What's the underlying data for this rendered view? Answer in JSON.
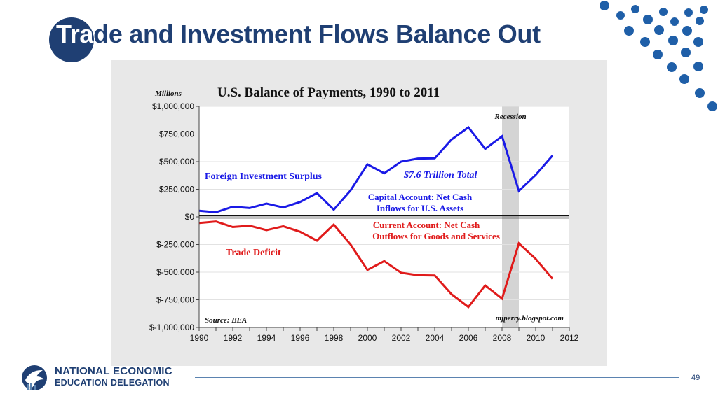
{
  "slide": {
    "title_prefix": "Tra",
    "title_rest": "de and Investment Flows Balance Out",
    "page_number": "49"
  },
  "logo": {
    "line1": "NATIONAL ECONOMIC",
    "line2": "EDUCATION DELEGATION"
  },
  "colors": {
    "navy": "#1f3f73",
    "dot_blue": "#1f5fa8",
    "surplus": "#1a1ae6",
    "deficit": "#e01b1b",
    "annotation": "#1a1ae6",
    "deficit_annotation": "#e01b1b",
    "panel": "#e8e8e8",
    "plot_bg": "#ffffff",
    "recession": "#d4d4d4"
  },
  "chart_data": {
    "type": "line",
    "title": "U.S. Balance of Payments, 1990 to 2011",
    "ylabel": "Millions",
    "x": [
      1990,
      1991,
      1992,
      1993,
      1994,
      1995,
      1996,
      1997,
      1998,
      1999,
      2000,
      2001,
      2002,
      2003,
      2004,
      2005,
      2006,
      2007,
      2008,
      2009,
      2010,
      2011
    ],
    "series": [
      {
        "values": [
          55000,
          42000,
          92000,
          80000,
          120000,
          85000,
          135000,
          215000,
          65000,
          240000,
          475000,
          395000,
          500000,
          528000,
          530000,
          700000,
          810000,
          615000,
          730000,
          235000,
          380000,
          555000
        ]
      },
      {
        "values": [
          -55000,
          -42000,
          -92000,
          -80000,
          -120000,
          -85000,
          -135000,
          -215000,
          -70000,
          -250000,
          -480000,
          -400000,
          -505000,
          -528000,
          -530000,
          -700000,
          -815000,
          -620000,
          -740000,
          -240000,
          -380000,
          -560000
        ]
      }
    ],
    "xlim": [
      1990,
      2012
    ],
    "ylim": [
      -1000000,
      1000000
    ],
    "xticks": [
      "1990",
      "1992",
      "1994",
      "1996",
      "1998",
      "2000",
      "2002",
      "2004",
      "2006",
      "2008",
      "2010",
      "2012"
    ],
    "yticks": [
      {
        "value": 1000000,
        "label": "$1,000,000"
      },
      {
        "value": 750000,
        "label": "$750,000"
      },
      {
        "value": 500000,
        "label": "$500,000"
      },
      {
        "value": 250000,
        "label": "$250,000"
      },
      {
        "value": 0,
        "label": "$0"
      },
      {
        "value": -250000,
        "label": "$-250,000"
      },
      {
        "value": -500000,
        "label": "$-500,000"
      },
      {
        "value": -750000,
        "label": "$-750,000"
      },
      {
        "value": -1000000,
        "label": "$-1,000,000"
      }
    ],
    "recession": {
      "label": "Recession",
      "from": 2008.0,
      "to": 2009.0
    },
    "grid": true,
    "annotations": {
      "surplus": "Foreign Investment Surplus",
      "total": "$7.6 Trillion Total",
      "capital1": "Capital Account: Net Cash",
      "capital2": "Inflows for U.S. Assets",
      "current1": "Current Account: Net Cash",
      "current2": "Outflows for Goods and Services",
      "deficit": "Trade Deficit",
      "source": "Source: BEA",
      "credit": "mjperry.blogspot.com"
    }
  }
}
